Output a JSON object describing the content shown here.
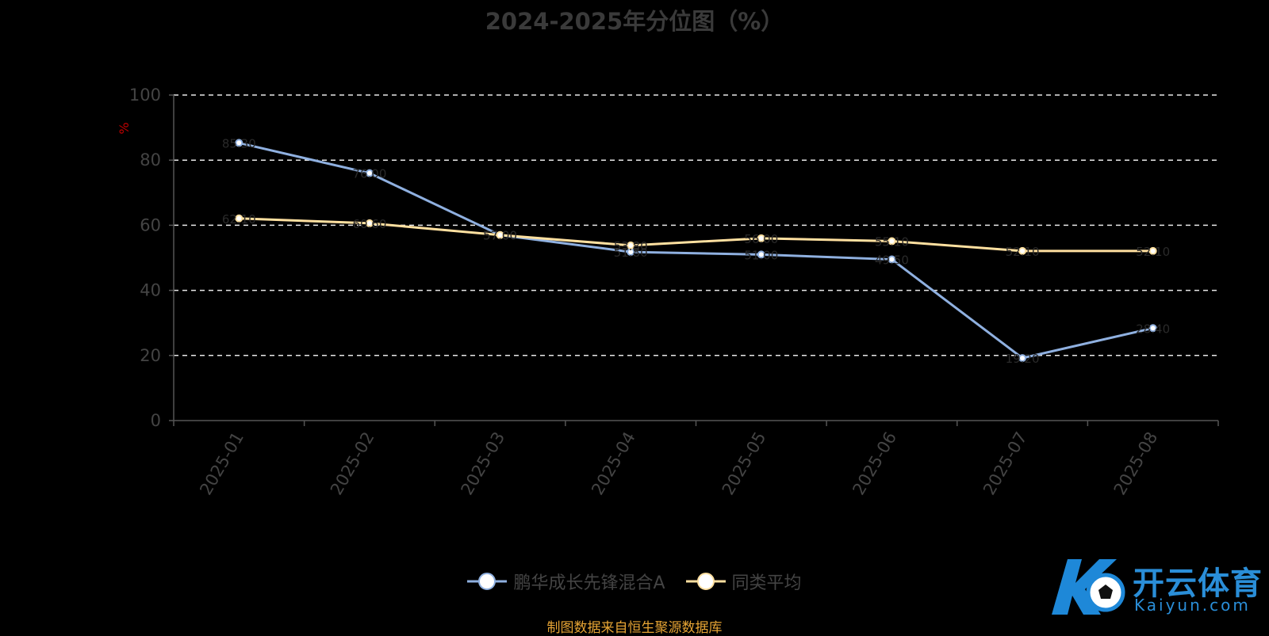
{
  "chart_data": {
    "type": "line",
    "title": "2024-2025年分位图（%）",
    "ylabel": "%",
    "ylim": [
      0,
      100
    ],
    "yticks": [
      0,
      20,
      40,
      60,
      80,
      100
    ],
    "categories": [
      "2025-01",
      "2025-02",
      "2025-03",
      "2025-04",
      "2025-05",
      "2025-06",
      "2025-07",
      "2025-08"
    ],
    "grid": true,
    "legend_position": "bottom",
    "series": [
      {
        "name": "鹏华成长先锋混合A",
        "color": "#8fb0e0",
        "values": [
          85.3,
          76.0,
          57.0,
          51.8,
          51.0,
          49.5,
          19.2,
          28.4
        ]
      },
      {
        "name": "同类平均",
        "color": "#ffe0a0",
        "values": [
          62.1,
          60.6,
          57.0,
          53.8,
          56.0,
          55.1,
          52.1,
          52.1
        ]
      }
    ]
  },
  "footer": {
    "source": "制图数据来自恒生聚源数据库"
  },
  "watermark": {
    "logo": "开云体育",
    "url": "Kaiyun.com"
  }
}
